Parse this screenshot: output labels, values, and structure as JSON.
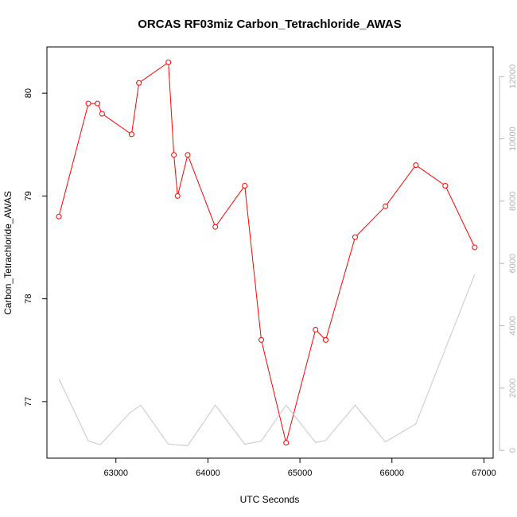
{
  "chart_data": {
    "type": "line",
    "title": "ORCAS RF03miz Carbon_Tetrachloride_AWAS",
    "xlabel": "UTC Seconds",
    "ylabel": "Carbon_Tetrachloride_AWAS",
    "xlim": [
      62250,
      67100
    ],
    "ylim": [
      76.45,
      80.45
    ],
    "y2lim": [
      -250,
      12950
    ],
    "x_ticks": [
      63000,
      64000,
      65000,
      66000,
      67000
    ],
    "y_ticks": [
      77,
      78,
      79,
      80
    ],
    "y2_ticks": [
      0,
      2000,
      4000,
      6000,
      8000,
      10000,
      12000
    ],
    "grid": false,
    "series": [
      {
        "color": "#ff0000",
        "axis": "left",
        "markers": true,
        "x": [
          62380,
          62700,
          62800,
          62850,
          63170,
          63250,
          63570,
          63630,
          63670,
          63780,
          64080,
          64400,
          64580,
          64850,
          65170,
          65280,
          65600,
          65930,
          66260,
          66580,
          66900
        ],
        "y": [
          78.8,
          79.9,
          79.9,
          79.8,
          79.6,
          80.1,
          80.3,
          79.4,
          79.0,
          79.4,
          78.7,
          79.1,
          77.6,
          76.6,
          77.7,
          77.6,
          78.6,
          78.9,
          79.3,
          79.1,
          78.5
        ]
      },
      {
        "color": "#c8c8c8",
        "axis": "right",
        "markers": false,
        "x": [
          62380,
          62700,
          62830,
          63150,
          63270,
          63570,
          63780,
          64080,
          64400,
          64580,
          64850,
          65170,
          65280,
          65600,
          65930,
          66260,
          66900
        ],
        "y": [
          2300,
          300,
          180,
          1200,
          1450,
          200,
          150,
          1450,
          200,
          300,
          1450,
          250,
          320,
          1450,
          270,
          850,
          5650
        ]
      }
    ]
  }
}
